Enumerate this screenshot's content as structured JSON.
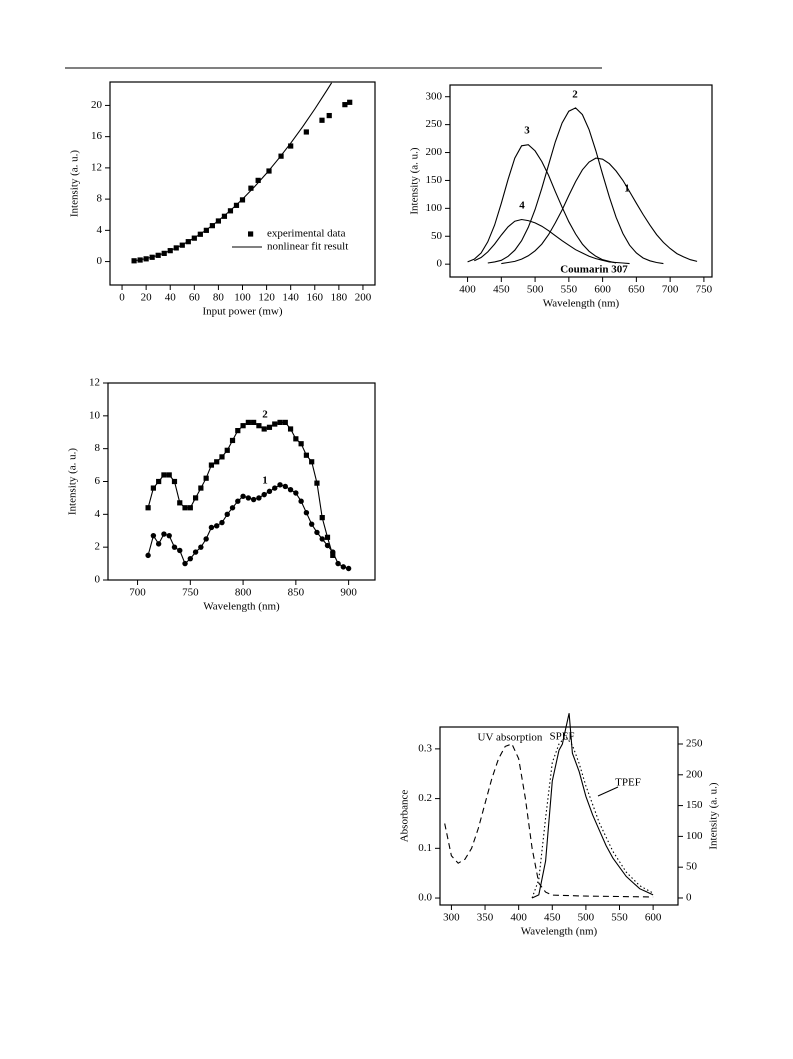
{
  "chart_data": [
    {
      "type": "line",
      "xlabel": "Input power (mw)",
      "ylabel": "Intensity (a. u.)",
      "xlim": [
        -10,
        210
      ],
      "ylim": [
        -3,
        23
      ],
      "xticks": [
        0,
        20,
        40,
        60,
        80,
        100,
        120,
        140,
        160,
        180,
        200
      ],
      "yticks": [
        0,
        4,
        8,
        12,
        16,
        20
      ],
      "legend": "lower right",
      "series": [
        {
          "name": "experimental data",
          "color": "#000000",
          "marker": "square",
          "x": [
            10,
            15,
            20,
            25,
            30,
            35,
            40,
            45,
            50,
            55,
            60,
            65,
            70,
            75,
            80,
            85,
            90,
            95,
            100,
            107,
            113,
            122,
            132,
            140,
            153,
            166,
            172,
            185,
            189
          ],
          "values": [
            0.1,
            0.2,
            0.35,
            0.55,
            0.8,
            1.05,
            1.4,
            1.75,
            2.1,
            2.55,
            3.0,
            3.5,
            4.0,
            4.6,
            5.2,
            5.8,
            6.5,
            7.2,
            7.9,
            9.4,
            10.4,
            11.6,
            13.5,
            14.8,
            16.6,
            18.1,
            18.7,
            20.1,
            20.4
          ]
        },
        {
          "name": "nonlinear fit result",
          "color": "#000000",
          "line_style": "solid",
          "x": [
            10,
            20,
            30,
            40,
            50,
            60,
            70,
            80,
            90,
            100,
            110,
            120,
            130,
            140,
            150,
            160,
            170,
            174
          ],
          "values": [
            0.1,
            0.38,
            0.81,
            1.4,
            2.14,
            3.03,
            4.06,
            5.24,
            6.55,
            8,
            9.59,
            11.31,
            13.17,
            15.16,
            17.28,
            19.54,
            21.93,
            22.9
          ]
        }
      ]
    },
    {
      "type": "line",
      "xlabel": "Wavelength (nm)",
      "ylabel": "Intensity (a. u.)",
      "xlim": [
        374,
        762
      ],
      "ylim": [
        -23,
        321
      ],
      "xticks": [
        400,
        450,
        500,
        550,
        600,
        650,
        700,
        750
      ],
      "yticks": [
        0,
        50,
        100,
        150,
        200,
        250,
        300
      ],
      "annotation": "Coumarin 307",
      "series": [
        {
          "name": "1",
          "color": "#000000",
          "line_style": "solid",
          "x": [
            450,
            460,
            470,
            480,
            490,
            500,
            510,
            520,
            530,
            540,
            550,
            560,
            570,
            580,
            590,
            600,
            610,
            620,
            630,
            640,
            650,
            660,
            670,
            680,
            690,
            700,
            710,
            720,
            730,
            740
          ],
          "values": [
            1,
            3,
            5,
            9,
            15,
            24,
            36,
            53,
            74,
            97,
            123,
            148,
            169,
            183,
            190,
            188,
            180,
            167,
            150,
            130,
            109,
            89,
            70,
            53,
            39,
            28,
            19,
            13,
            8,
            5
          ]
        },
        {
          "name": "2",
          "color": "#000000",
          "line_style": "solid",
          "x": [
            430,
            440,
            450,
            460,
            470,
            480,
            490,
            500,
            510,
            520,
            530,
            540,
            550,
            560,
            570,
            580,
            590,
            600,
            610,
            620,
            630,
            640,
            650,
            660,
            670,
            680,
            690
          ],
          "values": [
            2,
            4,
            7,
            14,
            25,
            42,
            66,
            98,
            136,
            178,
            219,
            253,
            274,
            280,
            268,
            241,
            203,
            161,
            120,
            84,
            55,
            34,
            20,
            11,
            6,
            3,
            1
          ]
        },
        {
          "name": "3",
          "color": "#000000",
          "line_style": "solid",
          "x": [
            400,
            410,
            420,
            430,
            440,
            450,
            460,
            470,
            480,
            490,
            500,
            510,
            520,
            530,
            540,
            550,
            560,
            570,
            580,
            590,
            600,
            610,
            620
          ],
          "values": [
            4,
            9,
            20,
            40,
            70,
            109,
            152,
            190,
            212,
            214,
            203,
            184,
            159,
            130,
            102,
            76,
            54,
            36,
            23,
            14,
            8,
            5,
            2
          ]
        },
        {
          "name": "4",
          "color": "#000000",
          "line_style": "solid",
          "x": [
            410,
            420,
            430,
            440,
            450,
            460,
            470,
            480,
            490,
            500,
            510,
            520,
            530,
            540,
            550,
            560,
            570,
            580,
            590,
            600,
            610,
            620,
            630,
            640
          ],
          "values": [
            6,
            12,
            22,
            36,
            52,
            67,
            77,
            80,
            78,
            74,
            68,
            60,
            51,
            42,
            34,
            26,
            20,
            14,
            10,
            7,
            4,
            3,
            2,
            1
          ]
        }
      ]
    },
    {
      "type": "line",
      "xlabel": "Wavelength (nm)",
      "ylabel": "Intensity (a. u.)",
      "xlim": [
        672,
        925
      ],
      "ylim": [
        0,
        12
      ],
      "xticks": [
        700,
        750,
        800,
        850,
        900
      ],
      "yticks": [
        0,
        2,
        4,
        6,
        8,
        10,
        12
      ],
      "series": [
        {
          "name": "1",
          "color": "#000000",
          "line_style": "solid",
          "marker": "circle",
          "x": [
            710,
            715,
            720,
            725,
            730,
            735,
            740,
            745,
            750,
            755,
            760,
            765,
            770,
            775,
            780,
            785,
            790,
            795,
            800,
            805,
            810,
            815,
            820,
            825,
            830,
            835,
            840,
            845,
            850,
            855,
            860,
            865,
            870,
            875,
            880,
            885,
            890,
            895,
            900
          ],
          "values": [
            1.5,
            2.7,
            2.2,
            2.8,
            2.7,
            2.0,
            1.8,
            1.0,
            1.3,
            1.7,
            2.0,
            2.5,
            3.2,
            3.3,
            3.5,
            4.0,
            4.4,
            4.8,
            5.1,
            5.0,
            4.9,
            5.0,
            5.2,
            5.4,
            5.6,
            5.8,
            5.7,
            5.5,
            5.3,
            4.8,
            4.1,
            3.4,
            2.9,
            2.5,
            2.1,
            1.7,
            1.0,
            0.8,
            0.7
          ]
        },
        {
          "name": "2",
          "color": "#000000",
          "line_style": "solid",
          "marker": "square",
          "x": [
            710,
            715,
            720,
            725,
            730,
            735,
            740,
            745,
            750,
            755,
            760,
            765,
            770,
            775,
            780,
            785,
            790,
            795,
            800,
            805,
            810,
            815,
            820,
            825,
            830,
            835,
            840,
            845,
            850,
            855,
            860,
            865,
            870,
            875,
            880,
            885
          ],
          "values": [
            4.4,
            5.6,
            6.0,
            6.4,
            6.4,
            6.0,
            4.7,
            4.4,
            4.4,
            5.0,
            5.6,
            6.2,
            7.0,
            7.2,
            7.5,
            7.9,
            8.5,
            9.1,
            9.4,
            9.6,
            9.6,
            9.4,
            9.2,
            9.3,
            9.5,
            9.6,
            9.6,
            9.2,
            8.6,
            8.3,
            7.6,
            7.2,
            5.9,
            3.8,
            2.6,
            1.5
          ]
        }
      ]
    },
    {
      "type": "line",
      "xlabel": "Wavelength (nm)",
      "ylabel": "Absorbance",
      "y2label": "Intensity (a. u.)",
      "xlim": [
        283,
        637
      ],
      "ylim": [
        -0.014,
        0.344
      ],
      "y2lim": [
        -11.4,
        277.6
      ],
      "xticks": [
        300,
        350,
        400,
        450,
        500,
        550,
        600
      ],
      "yticks": [
        {
          "value": 0,
          "label": "0.0"
        },
        0.1,
        0.2,
        0.3
      ],
      "y2ticks": [
        0,
        50,
        100,
        150,
        200,
        250
      ],
      "series": [
        {
          "name": "UV absorption",
          "color": "#000000",
          "line_style": "dashed",
          "x": [
            290,
            300,
            310,
            320,
            330,
            340,
            350,
            360,
            370,
            380,
            390,
            400,
            410,
            420,
            430,
            440,
            450,
            500,
            550,
            600
          ],
          "values": [
            0.15,
            0.085,
            0.07,
            0.078,
            0.1,
            0.14,
            0.19,
            0.24,
            0.28,
            0.305,
            0.31,
            0.28,
            0.2,
            0.1,
            0.03,
            0.012,
            0.006,
            0.004,
            0.003,
            0.002
          ]
        },
        {
          "name": "SPEF",
          "color": "#000000",
          "line_style": "dotted",
          "axis": "y2",
          "x": [
            420,
            430,
            440,
            450,
            460,
            470,
            480,
            490,
            500,
            520,
            540,
            560,
            580,
            600
          ],
          "values": [
            0,
            30,
            130,
            220,
            250,
            262,
            248,
            218,
            182,
            122,
            76,
            42,
            20,
            8
          ]
        },
        {
          "name": "TPEF",
          "color": "#000000",
          "line_style": "solid",
          "axis": "y2",
          "x": [
            420,
            430,
            440,
            450,
            460,
            465,
            470,
            475,
            480,
            490,
            500,
            510,
            520,
            530,
            540,
            550,
            560,
            570,
            580,
            590,
            600
          ],
          "values": [
            0,
            5,
            60,
            190,
            240,
            250,
            275,
            300,
            235,
            205,
            165,
            135,
            110,
            85,
            65,
            50,
            35,
            25,
            15,
            10,
            5
          ]
        }
      ]
    }
  ]
}
